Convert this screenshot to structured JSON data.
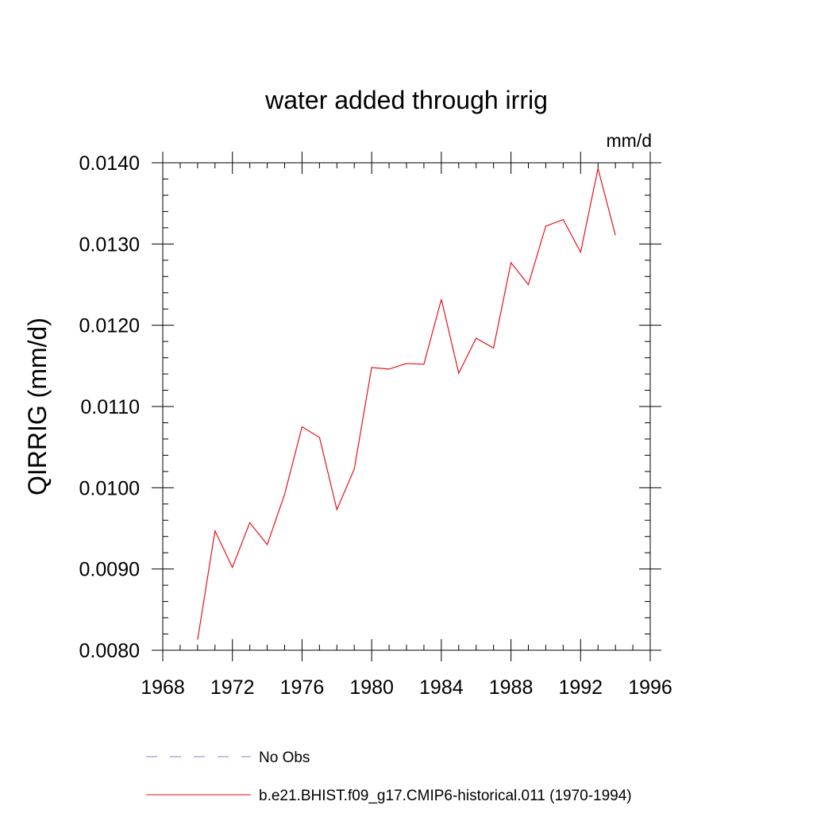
{
  "chart_data": {
    "type": "line",
    "title": "water added through irrig",
    "units_label": "mm/d",
    "xlabel": "",
    "ylabel": "QIRRIG  (mm/d)",
    "xlim": [
      1968,
      1996
    ],
    "ylim": [
      0.008,
      0.014
    ],
    "x_ticks": [
      1968,
      1972,
      1976,
      1980,
      1984,
      1988,
      1992,
      1996
    ],
    "x_tick_labels": [
      "1968",
      "1972",
      "1976",
      "1980",
      "1984",
      "1988",
      "1992",
      "1996"
    ],
    "y_ticks": [
      0.008,
      0.009,
      0.01,
      0.011,
      0.012,
      0.013,
      0.014
    ],
    "y_tick_labels": [
      "0.0080",
      "0.0090",
      "0.0100",
      "0.0110",
      "0.0120",
      "0.0130",
      "0.0140"
    ],
    "grid": false,
    "legend_placement": "bottom",
    "series": [
      {
        "name": "No Obs",
        "style": "dashed",
        "color": "#8080c0",
        "x": [],
        "y": []
      },
      {
        "name": "b.e21.BHIST.f09_g17.CMIP6-historical.011 (1970-1994)",
        "style": "solid",
        "color": "#e8111b",
        "x": [
          1970,
          1971,
          1972,
          1973,
          1974,
          1975,
          1976,
          1977,
          1978,
          1979,
          1980,
          1981,
          1982,
          1983,
          1984,
          1985,
          1986,
          1987,
          1988,
          1989,
          1990,
          1991,
          1992,
          1993,
          1994
        ],
        "y": [
          0.00813,
          0.00947,
          0.00902,
          0.00957,
          0.0093,
          0.00992,
          0.01075,
          0.01062,
          0.00973,
          0.01023,
          0.01148,
          0.01146,
          0.01153,
          0.01152,
          0.01232,
          0.01141,
          0.01184,
          0.01172,
          0.01277,
          0.0125,
          0.01322,
          0.0133,
          0.0129,
          0.01393,
          0.01311
        ]
      }
    ]
  }
}
